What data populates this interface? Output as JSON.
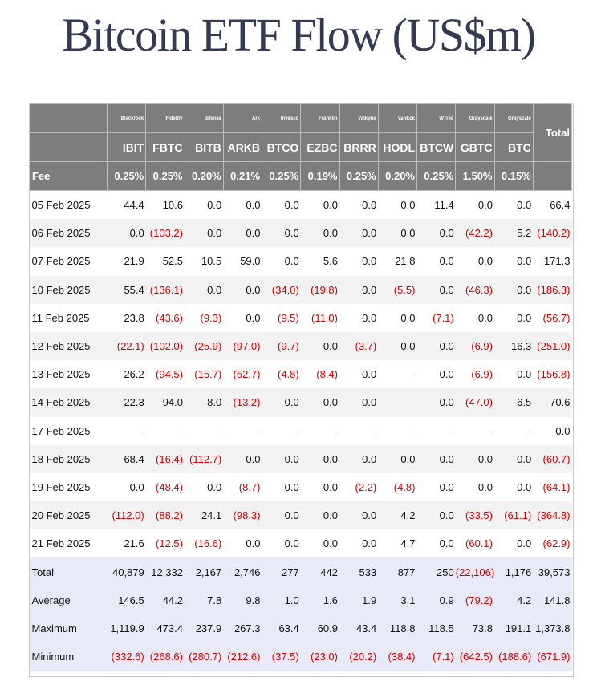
{
  "title": "Bitcoin ETF Flow (US$m)",
  "colors": {
    "header_bg": "#7d7d7d",
    "negative": "#d40000",
    "summary_bg": "#e8ebf7",
    "title": "#343a55"
  },
  "table": {
    "issuers": [
      "Blackrock",
      "Fidelity",
      "Bitwise",
      "Ark",
      "Invesco",
      "Franklin",
      "Valkyrie",
      "VanEck",
      "WTree",
      "Grayscale",
      "Grayscale"
    ],
    "total_header": "Total",
    "tickers": [
      "IBIT",
      "FBTC",
      "BITB",
      "ARKB",
      "BTCO",
      "EZBC",
      "BRRR",
      "HODL",
      "BTCW",
      "GBTC",
      "BTC"
    ],
    "fee_label": "Fee",
    "fees": [
      "0.25%",
      "0.25%",
      "0.20%",
      "0.21%",
      "0.25%",
      "0.19%",
      "0.25%",
      "0.20%",
      "0.25%",
      "1.50%",
      "0.15%"
    ],
    "rows": [
      {
        "date": "05 Feb 2025",
        "cells": [
          "44.4",
          "10.6",
          "0.0",
          "0.0",
          "0.0",
          "0.0",
          "0.0",
          "0.0",
          "11.4",
          "0.0",
          "0.0",
          "66.4"
        ]
      },
      {
        "date": "06 Feb 2025",
        "cells": [
          "0.0",
          "(103.2)",
          "0.0",
          "0.0",
          "0.0",
          "0.0",
          "0.0",
          "0.0",
          "0.0",
          "(42.2)",
          "5.2",
          "(140.2)"
        ]
      },
      {
        "date": "07 Feb 2025",
        "cells": [
          "21.9",
          "52.5",
          "10.5",
          "59.0",
          "0.0",
          "5.6",
          "0.0",
          "21.8",
          "0.0",
          "0.0",
          "0.0",
          "171.3"
        ]
      },
      {
        "date": "10 Feb 2025",
        "cells": [
          "55.4",
          "(136.1)",
          "0.0",
          "0.0",
          "(34.0)",
          "(19.8)",
          "0.0",
          "(5.5)",
          "0.0",
          "(46.3)",
          "0.0",
          "(186.3)"
        ]
      },
      {
        "date": "11 Feb 2025",
        "cells": [
          "23.8",
          "(43.6)",
          "(9.3)",
          "0.0",
          "(9.5)",
          "(11.0)",
          "0.0",
          "0.0",
          "(7.1)",
          "0.0",
          "0.0",
          "(56.7)"
        ]
      },
      {
        "date": "12 Feb 2025",
        "cells": [
          "(22.1)",
          "(102.0)",
          "(25.9)",
          "(97.0)",
          "(9.7)",
          "0.0",
          "(3.7)",
          "0.0",
          "0.0",
          "(6.9)",
          "16.3",
          "(251.0)"
        ]
      },
      {
        "date": "13 Feb 2025",
        "cells": [
          "26.2",
          "(94.5)",
          "(15.7)",
          "(52.7)",
          "(4.8)",
          "(8.4)",
          "0.0",
          "-",
          "0.0",
          "(6.9)",
          "0.0",
          "(156.8)"
        ]
      },
      {
        "date": "14 Feb 2025",
        "cells": [
          "22.3",
          "94.0",
          "8.0",
          "(13.2)",
          "0.0",
          "0.0",
          "0.0",
          "-",
          "0.0",
          "(47.0)",
          "6.5",
          "70.6"
        ]
      },
      {
        "date": "17 Feb 2025",
        "cells": [
          "-",
          "-",
          "-",
          "-",
          "-",
          "-",
          "-",
          "-",
          "-",
          "-",
          "-",
          "0.0"
        ]
      },
      {
        "date": "18 Feb 2025",
        "cells": [
          "68.4",
          "(16.4)",
          "(112.7)",
          "0.0",
          "0.0",
          "0.0",
          "0.0",
          "0.0",
          "0.0",
          "0.0",
          "0.0",
          "(60.7)"
        ]
      },
      {
        "date": "19 Feb 2025",
        "cells": [
          "0.0",
          "(48.4)",
          "0.0",
          "(8.7)",
          "0.0",
          "0.0",
          "(2.2)",
          "(4.8)",
          "0.0",
          "0.0",
          "0.0",
          "(64.1)"
        ]
      },
      {
        "date": "20 Feb 2025",
        "cells": [
          "(112.0)",
          "(88.2)",
          "24.1",
          "(98.3)",
          "0.0",
          "0.0",
          "0.0",
          "4.2",
          "0.0",
          "(33.5)",
          "(61.1)",
          "(364.8)"
        ]
      },
      {
        "date": "21 Feb 2025",
        "cells": [
          "21.6",
          "(12.5)",
          "(16.6)",
          "0.0",
          "0.0",
          "0.0",
          "0.0",
          "4.7",
          "0.0",
          "(60.1)",
          "0.0",
          "(62.9)"
        ]
      }
    ],
    "summary": [
      {
        "label": "Total",
        "cells": [
          "40,879",
          "12,332",
          "2,167",
          "2,746",
          "277",
          "442",
          "533",
          "877",
          "250",
          "(22,106)",
          "1,176",
          "39,573"
        ]
      },
      {
        "label": "Average",
        "cells": [
          "146.5",
          "44.2",
          "7.8",
          "9.8",
          "1.0",
          "1.6",
          "1.9",
          "3.1",
          "0.9",
          "(79.2)",
          "4.2",
          "141.8"
        ]
      },
      {
        "label": "Maximum",
        "cells": [
          "1,119.9",
          "473.4",
          "237.9",
          "267.3",
          "63.4",
          "60.9",
          "43.4",
          "118.8",
          "118.5",
          "73.8",
          "191.1",
          "1,373.8"
        ]
      },
      {
        "label": "Minimum",
        "cells": [
          "(332.6)",
          "(268.6)",
          "(280.7)",
          "(212.6)",
          "(37.5)",
          "(23.0)",
          "(20.2)",
          "(38.4)",
          "(7.1)",
          "(642.5)",
          "(188.6)",
          "(671.9)"
        ]
      }
    ]
  }
}
